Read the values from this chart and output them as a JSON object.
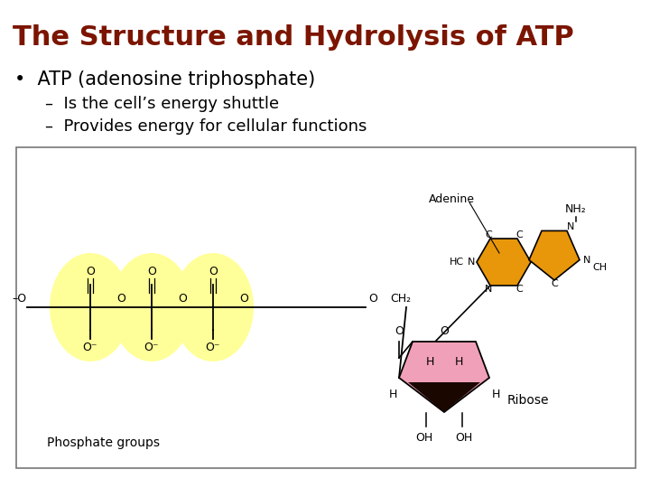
{
  "title": "The Structure and Hydrolysis of ATP",
  "title_color": "#7B1500",
  "bullet1": "ATP (adenosine triphosphate)",
  "sub1": "Is the cell’s energy shuttle",
  "sub2": "Provides energy for cellular functions",
  "bg_color": "#ffffff",
  "box_bg": "#ffffff",
  "box_border": "#888888",
  "yellow_color": "#FFFF99",
  "orange_color": "#E8960A",
  "pink_color": "#F0A0B8",
  "dark_color": "#2a1000"
}
